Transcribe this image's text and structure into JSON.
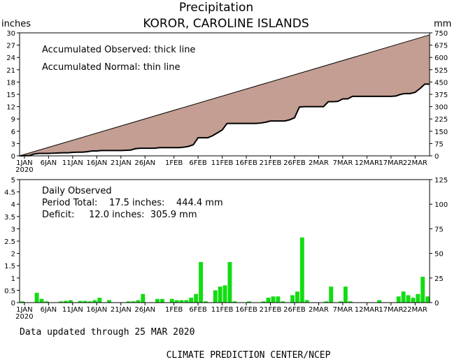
{
  "title": "Precipitation",
  "subtitle": "KOROR, CAROLINE ISLANDS",
  "left_unit": "inches",
  "right_unit": "mm",
  "top_note_1": "Accumulated Observed: thick line",
  "top_note_2": "Accumulated Normal: thin line",
  "bottom_note_1": "Daily Observed",
  "bottom_note_2": "Period Total:    17.5 inches:    444.4 mm",
  "bottom_note_3": "Deficit:     12.0 inches:  305.9 mm",
  "updated": "Data updated through 25 MAR 2020",
  "footer": "CLIMATE PREDICTION CENTER/NCEP",
  "colors": {
    "fill": "#c49e92",
    "bars": "#11dd11",
    "axis": "#000000"
  },
  "chart_data": [
    {
      "type": "area",
      "name": "accumulated",
      "x_labels": [
        "1JAN",
        "6JAN",
        "11JAN",
        "16JAN",
        "21JAN",
        "26JAN",
        "1FEB",
        "6FEB",
        "11FEB",
        "16FEB",
        "21FEB",
        "26FEB",
        "2MAR",
        "7MAR",
        "12MAR",
        "17MAR",
        "22MAR"
      ],
      "x_label_days": [
        1,
        6,
        11,
        16,
        21,
        26,
        32,
        37,
        42,
        47,
        52,
        57,
        62,
        67,
        72,
        77,
        82
      ],
      "year_label": "2020",
      "xlim": [
        0,
        85
      ],
      "ylim_left": [
        0,
        30
      ],
      "yticks_left": [
        0,
        3,
        6,
        9,
        12,
        15,
        18,
        21,
        24,
        27,
        30
      ],
      "ylim_right": [
        0,
        750
      ],
      "yticks_right": [
        0,
        75,
        150,
        225,
        300,
        375,
        450,
        525,
        600,
        675,
        750
      ],
      "normal_inches": [
        0.0,
        29.5
      ],
      "observed_days": [
        0,
        1,
        2,
        3,
        4,
        5,
        6,
        7,
        8,
        9,
        10,
        11,
        12,
        13,
        14,
        15,
        16,
        17,
        18,
        19,
        20,
        21,
        22,
        23,
        24,
        25,
        26,
        27,
        28,
        29,
        30,
        31,
        32,
        33,
        34,
        35,
        36,
        37,
        38,
        39,
        40,
        41,
        42,
        43,
        44,
        45,
        46,
        47,
        48,
        49,
        50,
        51,
        52,
        53,
        54,
        55,
        56,
        57,
        58,
        59,
        60,
        61,
        62,
        63,
        64,
        65,
        66,
        67,
        68,
        69,
        70,
        71,
        72,
        73,
        74,
        75,
        76,
        77,
        78,
        79,
        80,
        81,
        82,
        83,
        84,
        85
      ],
      "observed_inches": [
        0.0,
        0.05,
        0.05,
        0.45,
        0.6,
        0.6,
        0.6,
        0.65,
        0.7,
        0.75,
        0.75,
        0.85,
        0.9,
        0.9,
        1.0,
        1.2,
        1.2,
        1.3,
        1.3,
        1.3,
        1.3,
        1.3,
        1.35,
        1.4,
        1.75,
        1.85,
        1.85,
        1.85,
        1.85,
        2.0,
        2.0,
        2.0,
        2.0,
        2.0,
        2.1,
        2.3,
        2.7,
        4.4,
        4.4,
        4.4,
        4.9,
        5.6,
        6.3,
        7.9,
        7.9,
        7.9,
        7.9,
        7.9,
        7.9,
        7.9,
        8.0,
        8.2,
        8.5,
        8.5,
        8.5,
        8.5,
        8.8,
        9.3,
        11.9,
        12.0,
        12.0,
        12.0,
        12.0,
        12.0,
        13.2,
        13.2,
        13.3,
        13.9,
        13.9,
        14.5,
        14.5,
        14.5,
        14.5,
        14.5,
        14.5,
        14.5,
        14.5,
        14.5,
        14.6,
        15.0,
        15.2,
        15.2,
        15.5,
        16.4,
        17.5,
        17.5
      ]
    },
    {
      "type": "bar",
      "name": "daily",
      "x_labels": [
        "1JAN",
        "6JAN",
        "11JAN",
        "16JAN",
        "21JAN",
        "26JAN",
        "1FEB",
        "6FEB",
        "11FEB",
        "16FEB",
        "21FEB",
        "26FEB",
        "2MAR",
        "7MAR",
        "12MAR",
        "17MAR",
        "22MAR"
      ],
      "year_label": "2020",
      "xlim": [
        0,
        85
      ],
      "ylim_left": [
        0,
        5
      ],
      "yticks_left": [
        "0",
        "0.5",
        "1",
        "1.5",
        "2",
        "2.5",
        "3",
        "3.5",
        "4",
        "4.5",
        "5"
      ],
      "ylim_right": [
        0,
        125
      ],
      "yticks_right": [
        0,
        25,
        50,
        75,
        100,
        125
      ],
      "days": [
        0,
        3,
        4,
        5,
        8,
        9,
        10,
        12,
        13,
        14,
        15,
        16,
        18,
        22,
        23,
        24,
        25,
        28,
        29,
        31,
        32,
        33,
        34,
        35,
        36,
        37,
        38,
        40,
        41,
        42,
        43,
        44,
        47,
        50,
        51,
        52,
        53,
        54,
        56,
        57,
        58,
        59,
        63,
        64,
        66,
        67,
        68,
        74,
        78,
        79,
        80,
        81,
        82,
        83,
        84
      ],
      "values": [
        0.05,
        0.4,
        0.15,
        0.05,
        0.05,
        0.07,
        0.1,
        0.07,
        0.07,
        0.05,
        0.1,
        0.2,
        0.1,
        0.05,
        0.05,
        0.1,
        0.35,
        0.15,
        0.15,
        0.15,
        0.1,
        0.1,
        0.1,
        0.2,
        0.35,
        1.65,
        0.05,
        0.5,
        0.65,
        0.7,
        1.65,
        0.05,
        0.05,
        0.05,
        0.2,
        0.25,
        0.25,
        0.05,
        0.3,
        0.45,
        2.65,
        0.1,
        0.05,
        0.65,
        0.05,
        0.65,
        0.05,
        0.1,
        0.25,
        0.45,
        0.3,
        0.2,
        0.35,
        1.05,
        0.25
      ]
    }
  ]
}
